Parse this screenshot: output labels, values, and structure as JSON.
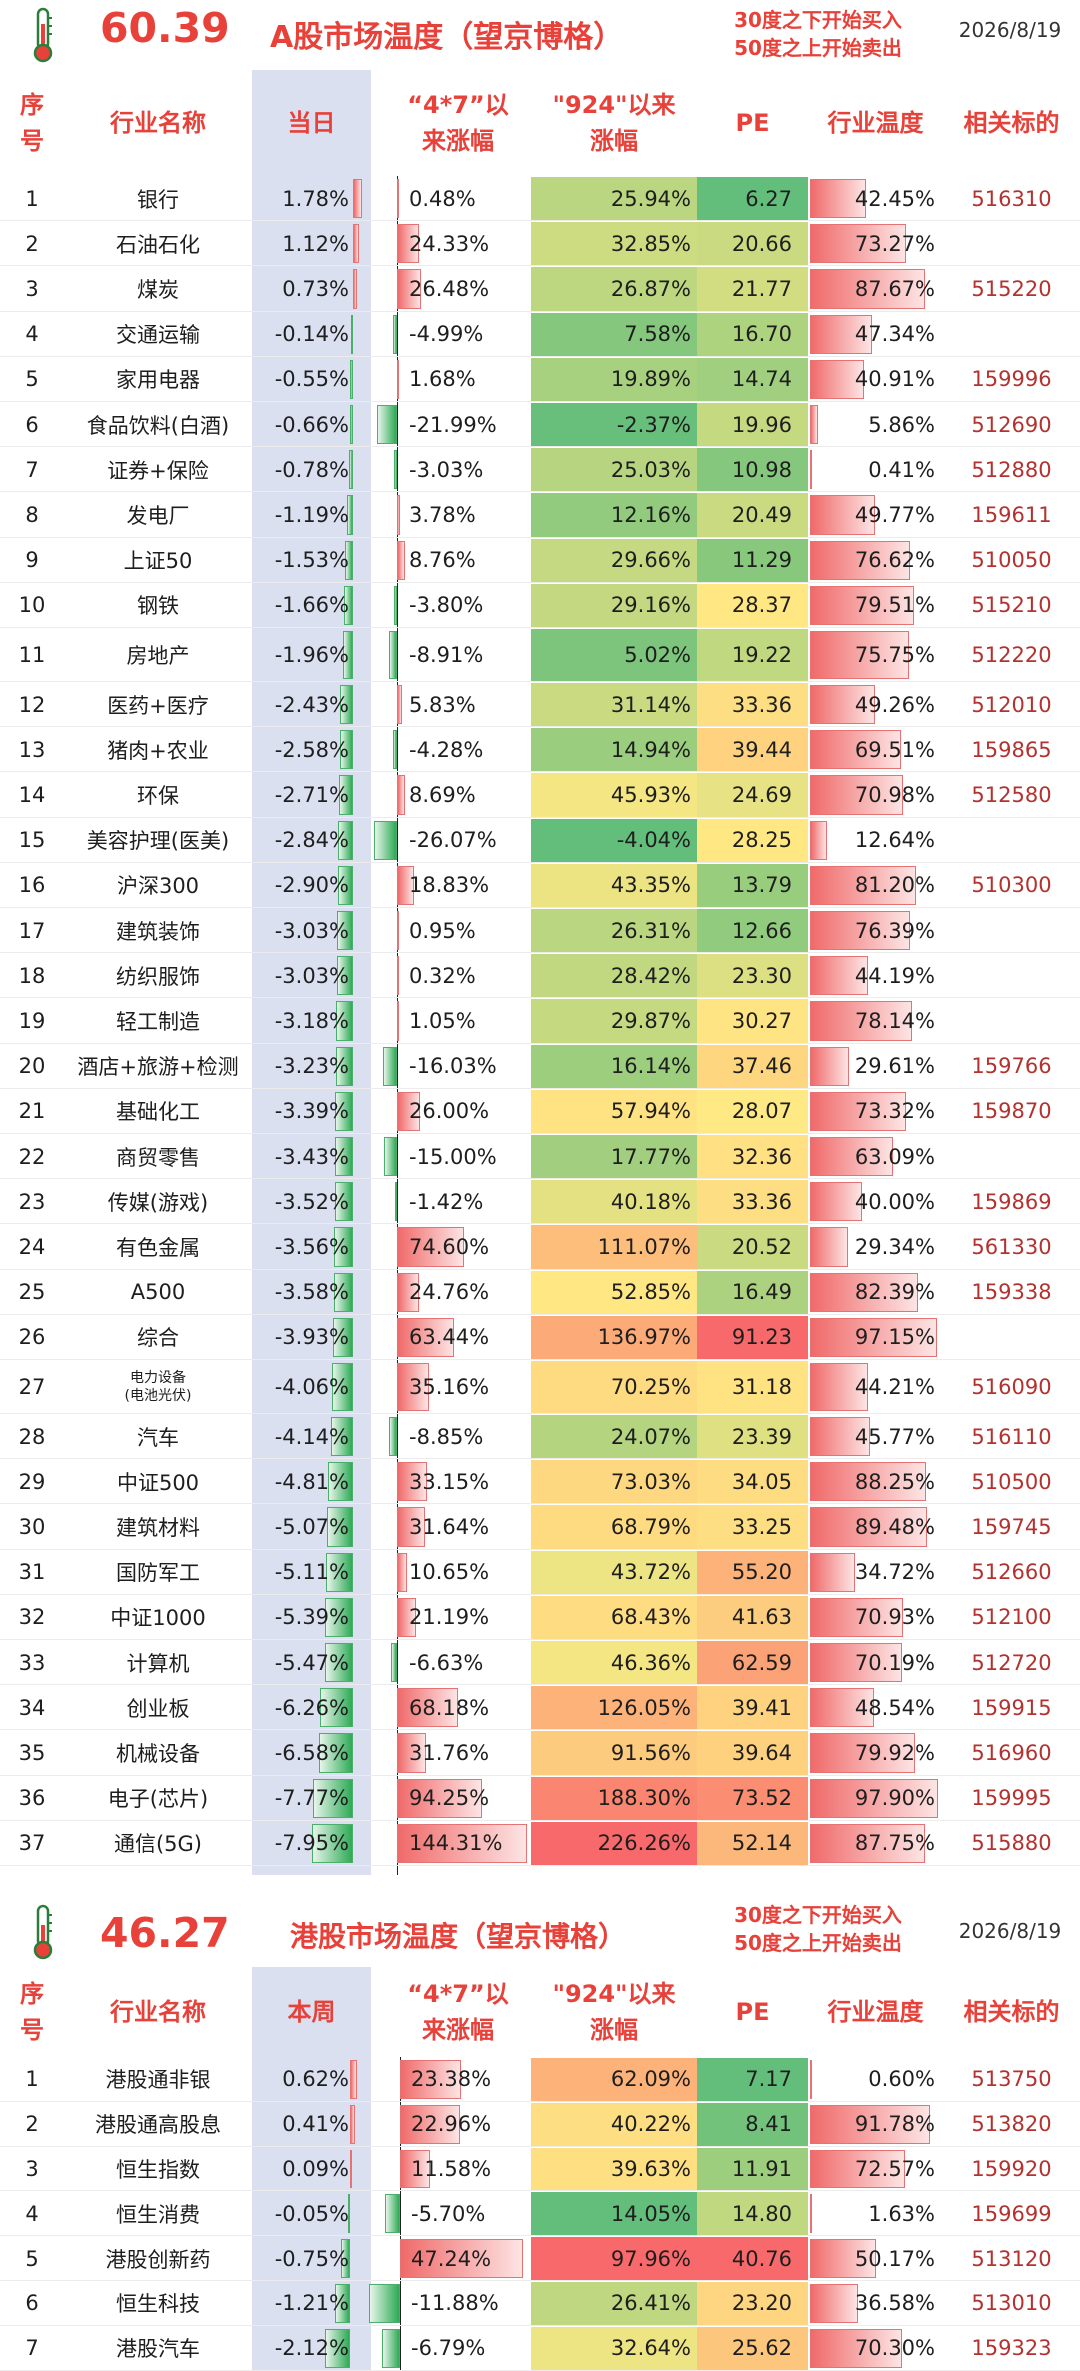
{
  "a_share": {
    "temperature": "60.39",
    "title": "A股市场温度（望京博格）",
    "note_line1": "30度之下开始买入",
    "note_line2": "50度之上开始卖出",
    "date": "2026/8/19",
    "headers": {
      "idx_l1": "序",
      "idx_l2": "号",
      "name": "行业名称",
      "day": "当日",
      "c47_l1": "“4*7”以",
      "c47_l2": "来涨幅",
      "c924_l1": "\"924\"以来",
      "c924_l2": "涨幅",
      "pe": "PE",
      "temp": "行业温度",
      "code": "相关标的"
    },
    "rows": [
      {
        "idx": "1",
        "name": "银行",
        "day": "1.78%",
        "c47": "0.48%",
        "c924": "25.94%",
        "pe": "6.27",
        "temp": "42.45%",
        "code": "516310"
      },
      {
        "idx": "2",
        "name": "石油石化",
        "day": "1.12%",
        "c47": "24.33%",
        "c924": "32.85%",
        "pe": "20.66",
        "temp": "73.27%",
        "code": ""
      },
      {
        "idx": "3",
        "name": "煤炭",
        "day": "0.73%",
        "c47": "26.48%",
        "c924": "26.87%",
        "pe": "21.77",
        "temp": "87.67%",
        "code": "515220"
      },
      {
        "idx": "4",
        "name": "交通运输",
        "day": "-0.14%",
        "c47": "-4.99%",
        "c924": "7.58%",
        "pe": "16.70",
        "temp": "47.34%",
        "code": ""
      },
      {
        "idx": "5",
        "name": "家用电器",
        "day": "-0.55%",
        "c47": "1.68%",
        "c924": "19.89%",
        "pe": "14.74",
        "temp": "40.91%",
        "code": "159996"
      },
      {
        "idx": "6",
        "name": "食品饮料(白酒)",
        "day": "-0.66%",
        "c47": "-21.99%",
        "c924": "-2.37%",
        "pe": "19.96",
        "temp": "5.86%",
        "code": "512690"
      },
      {
        "idx": "7",
        "name": "证券+保险",
        "day": "-0.78%",
        "c47": "-3.03%",
        "c924": "25.03%",
        "pe": "10.98",
        "temp": "0.41%",
        "code": "512880"
      },
      {
        "idx": "8",
        "name": "发电厂",
        "day": "-1.19%",
        "c47": "3.78%",
        "c924": "12.16%",
        "pe": "20.49",
        "temp": "49.77%",
        "code": "159611"
      },
      {
        "idx": "9",
        "name": "上证50",
        "day": "-1.53%",
        "c47": "8.76%",
        "c924": "29.66%",
        "pe": "11.29",
        "temp": "76.62%",
        "code": "510050"
      },
      {
        "idx": "10",
        "name": "钢铁",
        "day": "-1.66%",
        "c47": "-3.80%",
        "c924": "29.16%",
        "pe": "28.37",
        "temp": "79.51%",
        "code": "515210"
      },
      {
        "idx": "11",
        "name": "房地产",
        "day": "-1.96%",
        "c47": "-8.91%",
        "c924": "5.02%",
        "pe": "19.22",
        "temp": "75.75%",
        "code": "512220"
      },
      {
        "idx": "12",
        "name": "医药+医疗",
        "day": "-2.43%",
        "c47": "5.83%",
        "c924": "31.14%",
        "pe": "33.36",
        "temp": "49.26%",
        "code": "512010"
      },
      {
        "idx": "13",
        "name": "猪肉+农业",
        "day": "-2.58%",
        "c47": "-4.28%",
        "c924": "14.94%",
        "pe": "39.44",
        "temp": "69.51%",
        "code": "159865"
      },
      {
        "idx": "14",
        "name": "环保",
        "day": "-2.71%",
        "c47": "8.69%",
        "c924": "45.93%",
        "pe": "24.69",
        "temp": "70.98%",
        "code": "512580"
      },
      {
        "idx": "15",
        "name": "美容护理(医美)",
        "day": "-2.84%",
        "c47": "-26.07%",
        "c924": "-4.04%",
        "pe": "28.25",
        "temp": "12.64%",
        "code": ""
      },
      {
        "idx": "16",
        "name": "沪深300",
        "day": "-2.90%",
        "c47": "18.83%",
        "c924": "43.35%",
        "pe": "13.79",
        "temp": "81.20%",
        "code": "510300"
      },
      {
        "idx": "17",
        "name": "建筑装饰",
        "day": "-3.03%",
        "c47": "0.95%",
        "c924": "26.31%",
        "pe": "12.66",
        "temp": "76.39%",
        "code": ""
      },
      {
        "idx": "18",
        "name": "纺织服饰",
        "day": "-3.03%",
        "c47": "0.32%",
        "c924": "28.42%",
        "pe": "23.30",
        "temp": "44.19%",
        "code": ""
      },
      {
        "idx": "19",
        "name": "轻工制造",
        "day": "-3.18%",
        "c47": "1.05%",
        "c924": "29.87%",
        "pe": "30.27",
        "temp": "78.14%",
        "code": ""
      },
      {
        "idx": "20",
        "name": "酒店+旅游+检测",
        "day": "-3.23%",
        "c47": "-16.03%",
        "c924": "16.14%",
        "pe": "37.46",
        "temp": "29.61%",
        "code": "159766"
      },
      {
        "idx": "21",
        "name": "基础化工",
        "day": "-3.39%",
        "c47": "26.00%",
        "c924": "57.94%",
        "pe": "28.07",
        "temp": "73.32%",
        "code": "159870"
      },
      {
        "idx": "22",
        "name": "商贸零售",
        "day": "-3.43%",
        "c47": "-15.00%",
        "c924": "17.77%",
        "pe": "32.36",
        "temp": "63.09%",
        "code": ""
      },
      {
        "idx": "23",
        "name": "传媒(游戏)",
        "day": "-3.52%",
        "c47": "-1.42%",
        "c924": "40.18%",
        "pe": "33.36",
        "temp": "40.00%",
        "code": "159869"
      },
      {
        "idx": "24",
        "name": "有色金属",
        "day": "-3.56%",
        "c47": "74.60%",
        "c924": "111.07%",
        "pe": "20.52",
        "temp": "29.34%",
        "code": "561330"
      },
      {
        "idx": "25",
        "name": "A500",
        "day": "-3.58%",
        "c47": "24.76%",
        "c924": "52.85%",
        "pe": "16.49",
        "temp": "82.39%",
        "code": "159338"
      },
      {
        "idx": "26",
        "name": "综合",
        "day": "-3.93%",
        "c47": "63.44%",
        "c924": "136.97%",
        "pe": "91.23",
        "temp": "97.15%",
        "code": ""
      },
      {
        "idx": "27",
        "name": "电力设备",
        "name2": "(电池光伏)",
        "day": "-4.06%",
        "c47": "35.16%",
        "c924": "70.25%",
        "pe": "31.18",
        "temp": "44.21%",
        "code": "516090"
      },
      {
        "idx": "28",
        "name": "汽车",
        "day": "-4.14%",
        "c47": "-8.85%",
        "c924": "24.07%",
        "pe": "23.39",
        "temp": "45.77%",
        "code": "516110"
      },
      {
        "idx": "29",
        "name": "中证500",
        "day": "-4.81%",
        "c47": "33.15%",
        "c924": "73.03%",
        "pe": "34.05",
        "temp": "88.25%",
        "code": "510500"
      },
      {
        "idx": "30",
        "name": "建筑材料",
        "day": "-5.07%",
        "c47": "31.64%",
        "c924": "68.79%",
        "pe": "33.25",
        "temp": "89.48%",
        "code": "159745"
      },
      {
        "idx": "31",
        "name": "国防军工",
        "day": "-5.11%",
        "c47": "10.65%",
        "c924": "43.72%",
        "pe": "55.20",
        "temp": "34.72%",
        "code": "512660"
      },
      {
        "idx": "32",
        "name": "中证1000",
        "day": "-5.39%",
        "c47": "21.19%",
        "c924": "68.43%",
        "pe": "41.63",
        "temp": "70.93%",
        "code": "512100"
      },
      {
        "idx": "33",
        "name": "计算机",
        "day": "-5.47%",
        "c47": "-6.63%",
        "c924": "46.36%",
        "pe": "62.59",
        "temp": "70.19%",
        "code": "512720"
      },
      {
        "idx": "34",
        "name": "创业板",
        "day": "-6.26%",
        "c47": "68.18%",
        "c924": "126.05%",
        "pe": "39.41",
        "temp": "48.54%",
        "code": "159915"
      },
      {
        "idx": "35",
        "name": "机械设备",
        "day": "-6.58%",
        "c47": "31.76%",
        "c924": "91.56%",
        "pe": "39.64",
        "temp": "79.92%",
        "code": "516960"
      },
      {
        "idx": "36",
        "name": "电子(芯片)",
        "day": "-7.77%",
        "c47": "94.25%",
        "c924": "188.30%",
        "pe": "73.52",
        "temp": "97.90%",
        "code": "159995"
      },
      {
        "idx": "37",
        "name": "通信(5G)",
        "day": "-7.95%",
        "c47": "144.31%",
        "c924": "226.26%",
        "pe": "52.14",
        "temp": "87.75%",
        "code": "515880"
      }
    ]
  },
  "hk_share": {
    "temperature": "46.27",
    "title": "港股市场温度（望京博格）",
    "note_line1": "30度之下开始买入",
    "note_line2": "50度之上开始卖出",
    "date": "2026/8/19",
    "headers": {
      "idx_l1": "序",
      "idx_l2": "号",
      "name": "行业名称",
      "day": "本周",
      "c47_l1": "“4*7”以",
      "c47_l2": "来涨幅",
      "c924_l1": "\"924\"以来",
      "c924_l2": "涨幅",
      "pe": "PE",
      "temp": "行业温度",
      "code": "相关标的"
    },
    "rows": [
      {
        "idx": "1",
        "name": "港股通非银",
        "day": "0.62%",
        "c47": "23.38%",
        "c924": "62.09%",
        "pe": "7.17",
        "temp": "0.60%",
        "code": "513750"
      },
      {
        "idx": "2",
        "name": "港股通高股息",
        "day": "0.41%",
        "c47": "22.96%",
        "c924": "40.22%",
        "pe": "8.41",
        "temp": "91.78%",
        "code": "513820"
      },
      {
        "idx": "3",
        "name": "恒生指数",
        "day": "0.09%",
        "c47": "11.58%",
        "c924": "39.63%",
        "pe": "11.91",
        "temp": "72.57%",
        "code": "159920"
      },
      {
        "idx": "4",
        "name": "恒生消费",
        "day": "-0.05%",
        "c47": "-5.70%",
        "c924": "14.05%",
        "pe": "14.80",
        "temp": "1.63%",
        "code": "159699"
      },
      {
        "idx": "5",
        "name": "港股创新药",
        "day": "-0.75%",
        "c47": "47.24%",
        "c924": "97.96%",
        "pe": "40.76",
        "temp": "50.17%",
        "code": "513120"
      },
      {
        "idx": "6",
        "name": "恒生科技",
        "day": "-1.21%",
        "c47": "-11.88%",
        "c924": "26.41%",
        "pe": "23.20",
        "temp": "36.58%",
        "code": "513010"
      },
      {
        "idx": "7",
        "name": "港股汽车",
        "day": "-2.12%",
        "c47": "-6.79%",
        "c924": "32.64%",
        "pe": "25.62",
        "temp": "70.30%",
        "code": "159323"
      }
    ]
  },
  "colors": {
    "accent": "#e8413a",
    "code_text": "#b3322f",
    "highlight_col": "#dbe0f1",
    "bar_green": "#2eaa55",
    "bar_red": "#f06a6a",
    "scale_green": "#63be7b",
    "scale_yellow": "#ffe984",
    "scale_red": "#f8696b"
  }
}
